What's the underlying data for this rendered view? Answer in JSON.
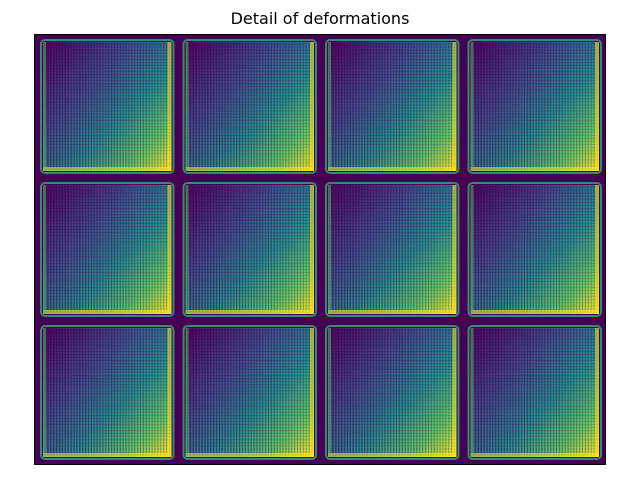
{
  "figure": {
    "title": "Detail of deformations"
  },
  "image": {
    "grid_rows": 3,
    "grid_cols": 4,
    "colormap": "viridis",
    "colors": {
      "background": "#440154",
      "dark_purple": "#46085c",
      "blue": "#3b528b",
      "teal": "#21918c",
      "green": "#5ec962",
      "yellow": "#fde725",
      "cyan_border": "#35b779"
    }
  }
}
